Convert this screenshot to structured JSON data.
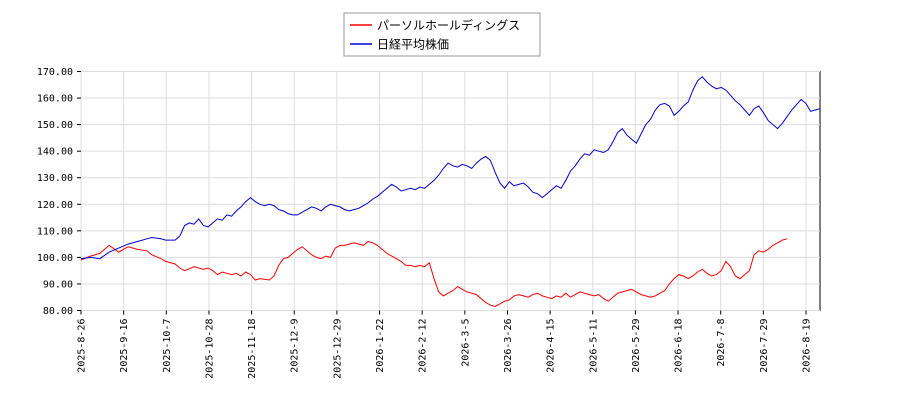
{
  "chart_data": {
    "type": "line",
    "legend_position": "top-center",
    "grid": true,
    "ylim": [
      80,
      170
    ],
    "yticks": [
      "80.00",
      "90.00",
      "100.00",
      "110.00",
      "120.00",
      "130.00",
      "140.00",
      "150.00",
      "160.00",
      "170.00"
    ],
    "xticks": [
      "2025-8-26",
      "2025-9-16",
      "2025-10-7",
      "2025-10-28",
      "2025-11-18",
      "2025-12-9",
      "2025-12-29",
      "2026-1-22",
      "2026-2-12",
      "2026-3-5",
      "2026-3-26",
      "2026-4-15",
      "2026-5-11",
      "2026-5-29",
      "2026-6-18",
      "2026-7-8",
      "2026-7-29",
      "2026-8-19"
    ],
    "series": [
      {
        "name": "パーソルホールディングス",
        "color": "#ff0000",
        "values": [
          [
            0,
            99.0
          ],
          [
            2,
            100.5
          ],
          [
            4,
            101.5
          ],
          [
            6,
            104.5
          ],
          [
            8,
            102.0
          ],
          [
            10,
            104.0
          ],
          [
            12,
            103.0
          ],
          [
            14,
            102.5
          ],
          [
            15,
            101.0
          ],
          [
            17,
            99.5
          ],
          [
            18,
            98.5
          ],
          [
            20,
            97.5
          ],
          [
            21,
            96.0
          ],
          [
            22,
            95.0
          ],
          [
            24,
            96.5
          ],
          [
            26,
            95.5
          ],
          [
            27,
            96.0
          ],
          [
            28,
            95.0
          ],
          [
            29,
            93.5
          ],
          [
            30,
            94.5
          ],
          [
            32,
            93.5
          ],
          [
            33,
            94.0
          ],
          [
            34,
            93.0
          ],
          [
            35,
            94.5
          ],
          [
            36,
            93.5
          ],
          [
            37,
            91.5
          ],
          [
            38,
            92.0
          ],
          [
            40,
            91.5
          ],
          [
            41,
            93.0
          ],
          [
            42,
            97.0
          ],
          [
            43,
            99.5
          ],
          [
            44,
            100.0
          ],
          [
            45,
            101.5
          ],
          [
            46,
            103.0
          ],
          [
            47,
            104.0
          ],
          [
            48,
            102.5
          ],
          [
            49,
            101.0
          ],
          [
            50,
            100.0
          ],
          [
            51,
            99.5
          ],
          [
            52,
            100.5
          ],
          [
            53,
            100.0
          ],
          [
            54,
            103.5
          ],
          [
            55,
            104.5
          ],
          [
            56,
            104.5
          ],
          [
            57,
            105.0
          ],
          [
            58,
            105.5
          ],
          [
            59,
            105.0
          ],
          [
            60,
            104.5
          ],
          [
            61,
            106.0
          ],
          [
            62,
            105.5
          ],
          [
            63,
            104.5
          ],
          [
            64,
            103.0
          ],
          [
            65,
            101.5
          ],
          [
            66,
            100.5
          ],
          [
            67,
            99.5
          ],
          [
            68,
            98.5
          ],
          [
            69,
            97.0
          ],
          [
            70,
            97.0
          ],
          [
            71,
            96.5
          ],
          [
            72,
            97.0
          ],
          [
            73,
            96.5
          ],
          [
            74,
            98.0
          ],
          [
            75,
            92.0
          ],
          [
            76,
            87.0
          ],
          [
            77,
            85.5
          ],
          [
            78,
            86.5
          ],
          [
            79,
            87.5
          ],
          [
            80,
            89.0
          ],
          [
            81,
            88.0
          ],
          [
            82,
            87.0
          ],
          [
            83,
            86.5
          ],
          [
            84,
            86.0
          ],
          [
            85,
            84.5
          ],
          [
            86,
            83.0
          ],
          [
            87,
            82.0
          ],
          [
            88,
            81.5
          ],
          [
            89,
            82.5
          ],
          [
            90,
            83.5
          ],
          [
            91,
            84.0
          ],
          [
            92,
            85.5
          ],
          [
            93,
            86.0
          ],
          [
            94,
            85.5
          ],
          [
            95,
            85.0
          ],
          [
            96,
            86.0
          ],
          [
            97,
            86.5
          ],
          [
            98,
            85.5
          ],
          [
            99,
            85.0
          ],
          [
            100,
            84.5
          ],
          [
            101,
            85.5
          ],
          [
            102,
            85.0
          ],
          [
            103,
            86.5
          ],
          [
            104,
            85.0
          ],
          [
            105,
            86.0
          ],
          [
            106,
            87.0
          ],
          [
            107,
            86.5
          ],
          [
            108,
            86.0
          ],
          [
            109,
            85.5
          ],
          [
            110,
            86.0
          ],
          [
            111,
            84.5
          ],
          [
            112,
            83.5
          ],
          [
            113,
            85.0
          ],
          [
            114,
            86.5
          ],
          [
            115,
            87.0
          ],
          [
            116,
            87.5
          ],
          [
            117,
            88.0
          ],
          [
            118,
            87.0
          ],
          [
            119,
            86.0
          ],
          [
            120,
            85.5
          ],
          [
            121,
            85.0
          ],
          [
            122,
            85.5
          ],
          [
            123,
            86.5
          ],
          [
            124,
            87.5
          ],
          [
            125,
            90.0
          ],
          [
            126,
            92.0
          ],
          [
            127,
            93.5
          ],
          [
            128,
            93.0
          ],
          [
            129,
            92.0
          ],
          [
            130,
            93.0
          ],
          [
            131,
            94.5
          ],
          [
            132,
            95.5
          ],
          [
            133,
            94.0
          ],
          [
            134,
            93.0
          ],
          [
            135,
            93.5
          ],
          [
            136,
            95.0
          ],
          [
            137,
            98.5
          ],
          [
            138,
            96.5
          ],
          [
            139,
            93.0
          ],
          [
            140,
            92.0
          ],
          [
            141,
            93.5
          ],
          [
            142,
            95.0
          ],
          [
            143,
            101.0
          ],
          [
            144,
            102.5
          ],
          [
            145,
            102.0
          ],
          [
            146,
            103.0
          ],
          [
            147,
            104.5
          ],
          [
            148,
            105.5
          ],
          [
            149,
            106.5
          ],
          [
            150,
            107.0
          ]
        ]
      },
      {
        "name": "日経平均株価",
        "color": "#0000cd",
        "values": [
          [
            0,
            99.5
          ],
          [
            2,
            100.0
          ],
          [
            4,
            99.5
          ],
          [
            6,
            102.0
          ],
          [
            8,
            103.5
          ],
          [
            10,
            105.0
          ],
          [
            12,
            106.0
          ],
          [
            14,
            107.0
          ],
          [
            15,
            107.5
          ],
          [
            17,
            107.0
          ],
          [
            18,
            106.5
          ],
          [
            20,
            106.5
          ],
          [
            21,
            108.0
          ],
          [
            22,
            112.0
          ],
          [
            23,
            113.0
          ],
          [
            24,
            112.5
          ],
          [
            25,
            114.5
          ],
          [
            26,
            112.0
          ],
          [
            27,
            111.5
          ],
          [
            28,
            113.0
          ],
          [
            29,
            114.5
          ],
          [
            30,
            114.0
          ],
          [
            31,
            116.0
          ],
          [
            32,
            115.5
          ],
          [
            33,
            117.5
          ],
          [
            34,
            119.0
          ],
          [
            35,
            121.0
          ],
          [
            36,
            122.5
          ],
          [
            37,
            121.0
          ],
          [
            38,
            120.0
          ],
          [
            39,
            119.5
          ],
          [
            40,
            120.0
          ],
          [
            41,
            119.5
          ],
          [
            42,
            118.0
          ],
          [
            43,
            117.5
          ],
          [
            44,
            116.5
          ],
          [
            45,
            116.0
          ],
          [
            46,
            116.0
          ],
          [
            47,
            117.0
          ],
          [
            48,
            118.0
          ],
          [
            49,
            119.0
          ],
          [
            50,
            118.5
          ],
          [
            51,
            117.5
          ],
          [
            52,
            119.0
          ],
          [
            53,
            120.0
          ],
          [
            54,
            119.5
          ],
          [
            55,
            119.0
          ],
          [
            56,
            118.0
          ],
          [
            57,
            117.5
          ],
          [
            58,
            118.0
          ],
          [
            59,
            118.5
          ],
          [
            60,
            119.5
          ],
          [
            61,
            120.5
          ],
          [
            62,
            122.0
          ],
          [
            63,
            123.0
          ],
          [
            64,
            124.5
          ],
          [
            65,
            126.0
          ],
          [
            66,
            127.5
          ],
          [
            67,
            126.5
          ],
          [
            68,
            125.0
          ],
          [
            69,
            125.5
          ],
          [
            70,
            126.0
          ],
          [
            71,
            125.5
          ],
          [
            72,
            126.5
          ],
          [
            73,
            126.0
          ],
          [
            74,
            127.5
          ],
          [
            75,
            129.0
          ],
          [
            76,
            131.0
          ],
          [
            77,
            133.5
          ],
          [
            78,
            135.5
          ],
          [
            79,
            134.5
          ],
          [
            80,
            134.0
          ],
          [
            81,
            135.0
          ],
          [
            82,
            134.5
          ],
          [
            83,
            133.5
          ],
          [
            84,
            135.5
          ],
          [
            85,
            137.0
          ],
          [
            86,
            138.0
          ],
          [
            87,
            136.5
          ],
          [
            88,
            132.0
          ],
          [
            89,
            128.0
          ],
          [
            90,
            126.0
          ],
          [
            91,
            128.5
          ],
          [
            92,
            127.0
          ],
          [
            93,
            127.5
          ],
          [
            94,
            128.0
          ],
          [
            95,
            126.5
          ],
          [
            96,
            124.5
          ],
          [
            97,
            124.0
          ],
          [
            98,
            122.5
          ],
          [
            99,
            124.0
          ],
          [
            100,
            125.5
          ],
          [
            101,
            127.0
          ],
          [
            102,
            126.0
          ],
          [
            103,
            129.0
          ],
          [
            104,
            132.5
          ],
          [
            105,
            134.5
          ],
          [
            106,
            137.0
          ],
          [
            107,
            139.0
          ],
          [
            108,
            138.5
          ],
          [
            109,
            140.5
          ],
          [
            110,
            140.0
          ],
          [
            111,
            139.5
          ],
          [
            112,
            140.5
          ],
          [
            113,
            143.5
          ],
          [
            114,
            147.0
          ],
          [
            115,
            148.5
          ],
          [
            116,
            146.0
          ],
          [
            117,
            144.5
          ],
          [
            118,
            143.0
          ],
          [
            119,
            146.5
          ],
          [
            120,
            150.0
          ],
          [
            121,
            152.0
          ],
          [
            122,
            155.5
          ],
          [
            123,
            157.5
          ],
          [
            124,
            158.0
          ],
          [
            125,
            157.0
          ],
          [
            126,
            153.5
          ],
          [
            127,
            155.0
          ],
          [
            128,
            157.0
          ],
          [
            129,
            158.5
          ],
          [
            130,
            163.0
          ],
          [
            131,
            166.5
          ],
          [
            132,
            168.0
          ],
          [
            133,
            166.0
          ],
          [
            134,
            164.5
          ],
          [
            135,
            163.5
          ],
          [
            136,
            164.0
          ],
          [
            137,
            163.0
          ],
          [
            138,
            161.0
          ],
          [
            139,
            159.0
          ],
          [
            140,
            157.5
          ],
          [
            141,
            155.5
          ],
          [
            142,
            153.5
          ],
          [
            143,
            156.0
          ],
          [
            144,
            157.0
          ],
          [
            145,
            154.5
          ],
          [
            146,
            151.5
          ],
          [
            147,
            150.0
          ],
          [
            148,
            148.5
          ],
          [
            149,
            150.5
          ],
          [
            150,
            153.0
          ],
          [
            151,
            155.5
          ],
          [
            152,
            157.5
          ],
          [
            153,
            159.5
          ],
          [
            154,
            158.0
          ],
          [
            155,
            155.0
          ],
          [
            156,
            155.5
          ],
          [
            157,
            156.0
          ]
        ]
      }
    ]
  }
}
